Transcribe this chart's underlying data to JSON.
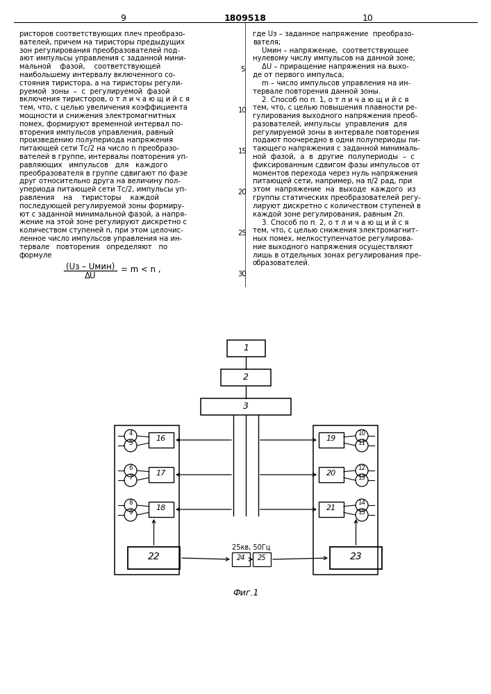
{
  "page_numbers": [
    "9",
    "1809518",
    "10"
  ],
  "left_text": [
    "ристоров соответствующих плеч преобразо-",
    "вателей, причем на тиристоры предыдущих",
    "зон регулирования преобразователей под-",
    "ают импульсы управления с заданной мини-",
    "мальной    фазой,    соответствующей",
    "наибольшему интервалу включенного со-",
    "стояния тиристора, а на тиристоры регули-",
    "руемой  зоны  –  с  регулируемой  фазой",
    "включения тиристоров, о т л и ч а ю щ и й с я",
    "тем, что, с целью увеличения коэффициента",
    "мощности и снижения электромагнитных",
    "помех, формируют временной интервал по-",
    "вторения импульсов управления, равный",
    "произведению полупериода напряжения",
    "питающей сети Тс/2 на число n преобразо-",
    "вателей в группе, интервалы повторения уп-",
    "равляющих   импульсов   для   каждого",
    "преобразователя в группе сдвигают по фазе",
    "друг относительно друга на величину пол-",
    "упериода питающей сети Тс/2, импульсы уп-",
    "равления    на    тиристоры    каждой",
    "последующей регулируемой зоны формиру-",
    "ют с заданной минимальной фазой, а напря-"
  ],
  "right_text_top": [
    "где Uз – заданное напряжение  преобразо-",
    "вателя;",
    "    Uмин – напряжение,  соответствующее",
    "нулевому числу импульсов на данной зоне;",
    "    ΔU – приращение напряжения на выхо-",
    "де от первого импульса;",
    "    m – число импульсов управления на ин-",
    "тервале повторения данной зоны.",
    "    2. Способ по п. 1, о т л и ч а ю щ и й с я",
    "тем, что, с целью повышения плавности ре-",
    "гулирования выходного напряжения преоб-",
    "разователей, импульсы  управления  для",
    "регулируемой зоны в интервале повторения",
    "подают поочередно в одни полупериоды пи-",
    "тающего напряжения с заданной минималь-",
    "ной  фазой,  а  в  другие  полупериоды  –  с",
    "фиксированным сдвигом фазы импульсов от",
    "моментов перехода через нуль напряжения",
    "питающей сети, например, на π/2 рад, при",
    "этом  напряжение  на  выходе  каждого  из",
    "группы статических преобразователей регу-",
    "лируют дискретно с количеством ступеней в",
    "каждой зоне регулирования, равным 2n."
  ],
  "left_text2": [
    "жение на этой зоне регулируют дискретно с",
    "количеством ступеней n, при этом целочис-",
    "ленное число импульсов управления на ин-",
    "тервале   повторения   определяют   по",
    "формуле"
  ],
  "right_text2": [
    "    3. Способ по п. 2, о т л и ч а ю щ и й с я",
    "тем, что, с целью снижения электромагнит-",
    "ных помех, мелкоступенчатое регулирова-",
    "ние выходного напряжения осуществляют",
    "лишь в отдельных зонах регулирования пре-",
    "образователей."
  ],
  "line_numbers": [
    5,
    10,
    15,
    20,
    25,
    30
  ],
  "voltage_label": "25кв, 50Гц",
  "fig_label": "Фиг.1"
}
